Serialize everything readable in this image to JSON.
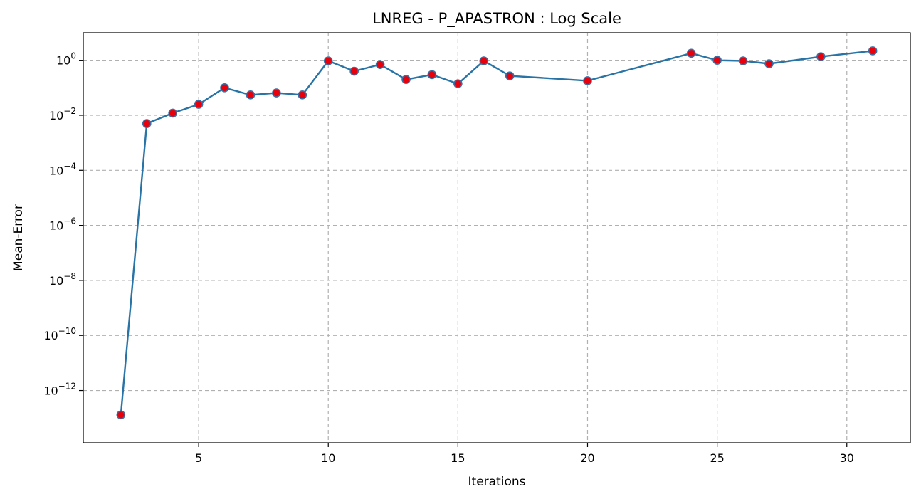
{
  "chart_data": {
    "type": "line",
    "title": "LNREG - P_APASTRON : Log Scale",
    "xlabel": "Iterations",
    "ylabel": "Mean-Error",
    "yscale": "log",
    "xlim": [
      0.55,
      32.45
    ],
    "ylim_log10": [
      -13.9,
      1.0
    ],
    "x_ticks": [
      5,
      10,
      15,
      20,
      25,
      30
    ],
    "y_ticks": [
      {
        "base": "10",
        "exp": "0",
        "log": 0
      },
      {
        "base": "10",
        "exp": "−2",
        "log": -2
      },
      {
        "base": "10",
        "exp": "−4",
        "log": -4
      },
      {
        "base": "10",
        "exp": "−6",
        "log": -6
      },
      {
        "base": "10",
        "exp": "−8",
        "log": -8
      },
      {
        "base": "10",
        "exp": "−10",
        "log": -10
      },
      {
        "base": "10",
        "exp": "−12",
        "log": -12
      }
    ],
    "grid": true,
    "line_color": "#2874a6",
    "marker_color": "#e8000b",
    "marker_edge_color": "#3a6ea5",
    "series": [
      {
        "x": [
          2,
          3,
          4,
          5,
          6,
          7,
          8,
          9,
          10,
          11,
          12,
          13,
          14,
          15,
          16,
          17,
          20,
          24,
          25,
          26,
          27,
          29,
          31
        ],
        "y": [
          1.3e-13,
          0.005,
          0.012,
          0.025,
          0.1,
          0.055,
          0.065,
          0.055,
          0.95,
          0.4,
          0.7,
          0.2,
          0.3,
          0.14,
          0.95,
          0.27,
          0.18,
          1.8,
          1.0,
          0.95,
          0.75,
          1.35,
          2.2
        ]
      }
    ]
  }
}
